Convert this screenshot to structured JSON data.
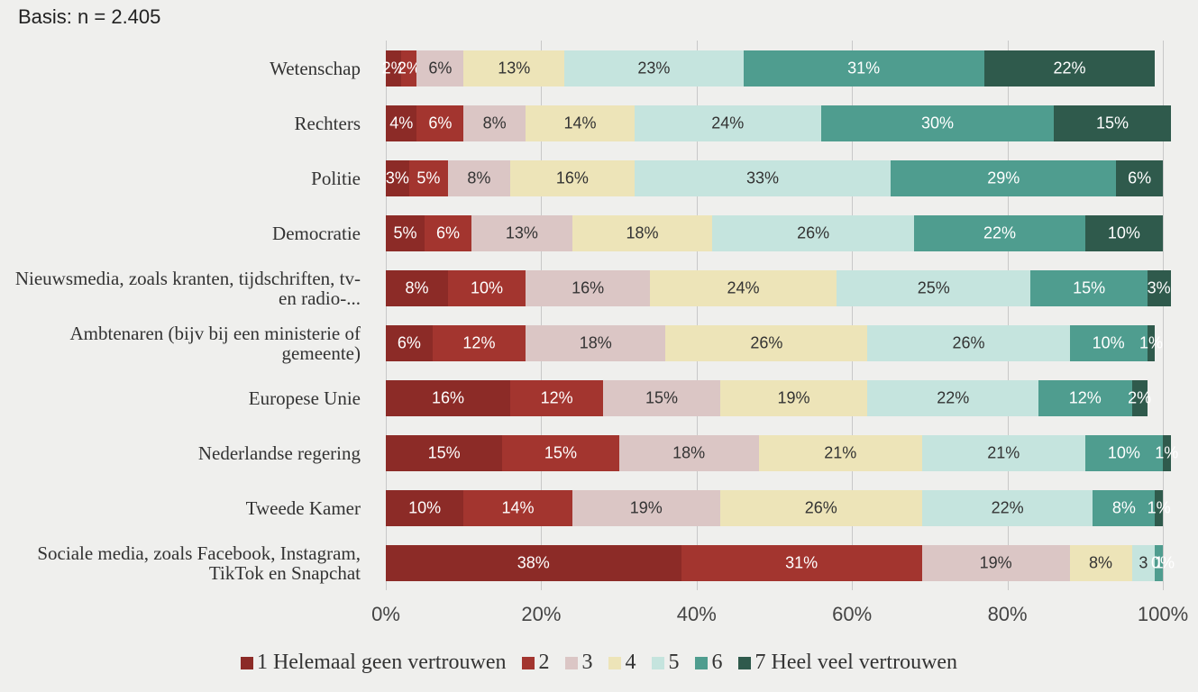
{
  "chart_data": {
    "type": "stacked-bar-horizontal",
    "subtitle": "Basis: n = 2.405",
    "categories": [
      "Wetenschap",
      "Rechters",
      "Politie",
      "Democratie",
      "Nieuwsmedia, zoals kranten, tijdschriften, tv- en radio-...",
      "Ambtenaren (bijv bij een ministerie of gemeente)",
      "Europese Unie",
      "Nederlandse regering",
      "Tweede Kamer",
      "Sociale media, zoals Facebook, Instagram, TikTok en Snapchat"
    ],
    "series": [
      {
        "name": "1 Helemaal geen vertrouwen",
        "color": "#8c2b27",
        "values": [
          2,
          4,
          3,
          5,
          8,
          6,
          16,
          15,
          10,
          38
        ],
        "value_labels": [
          "2%",
          "4%",
          "3%",
          "5%",
          "8%",
          "6%",
          "16%",
          "15%",
          "10%",
          "38%"
        ]
      },
      {
        "name": "2",
        "color": "#a3352f",
        "values": [
          2,
          6,
          5,
          6,
          10,
          12,
          12,
          15,
          14,
          31
        ],
        "value_labels": [
          "2%",
          "6%",
          "5%",
          "6%",
          "10%",
          "12%",
          "12%",
          "15%",
          "14%",
          "31%"
        ]
      },
      {
        "name": "3",
        "color": "#dbc6c5",
        "values": [
          6,
          8,
          8,
          13,
          16,
          18,
          15,
          18,
          19,
          19
        ],
        "value_labels": [
          "6%",
          "8%",
          "8%",
          "13%",
          "16%",
          "18%",
          "15%",
          "18%",
          "19%",
          "19%"
        ]
      },
      {
        "name": "4",
        "color": "#ede4b8",
        "values": [
          13,
          14,
          16,
          18,
          24,
          26,
          19,
          21,
          26,
          8
        ],
        "value_labels": [
          "13%",
          "14%",
          "16%",
          "18%",
          "24%",
          "26%",
          "19%",
          "21%",
          "26%",
          "8%"
        ]
      },
      {
        "name": "5",
        "color": "#c5e4de",
        "values": [
          23,
          24,
          33,
          26,
          25,
          26,
          22,
          21,
          22,
          3
        ],
        "value_labels": [
          "23%",
          "24%",
          "33%",
          "26%",
          "25%",
          "26%",
          "22%",
          "21%",
          "22%",
          "3"
        ]
      },
      {
        "name": "6",
        "color": "#4f9d8f",
        "values": [
          31,
          30,
          29,
          22,
          15,
          10,
          12,
          10,
          8,
          1
        ],
        "value_labels": [
          "31%",
          "30%",
          "29%",
          "22%",
          "15%",
          "10%",
          "12%",
          "10%",
          "8%",
          "1"
        ]
      },
      {
        "name": "7 Heel veel vertrouwen",
        "color": "#2f5a4c",
        "values": [
          22,
          15,
          6,
          10,
          3,
          1,
          2,
          1,
          1,
          0
        ],
        "value_labels": [
          "22%",
          "15%",
          "6%",
          "10%",
          "3%",
          "1%",
          "2%",
          "1%",
          "1%",
          "0%"
        ]
      }
    ],
    "xlim": [
      0,
      100
    ],
    "xticks": [
      {
        "value": 0,
        "label": "0%"
      },
      {
        "value": 20,
        "label": "20%"
      },
      {
        "value": 40,
        "label": "40%"
      },
      {
        "value": 60,
        "label": "60%"
      },
      {
        "value": 80,
        "label": "80%"
      },
      {
        "value": 100,
        "label": "100%"
      }
    ],
    "grid": true,
    "legend": "bottom"
  }
}
